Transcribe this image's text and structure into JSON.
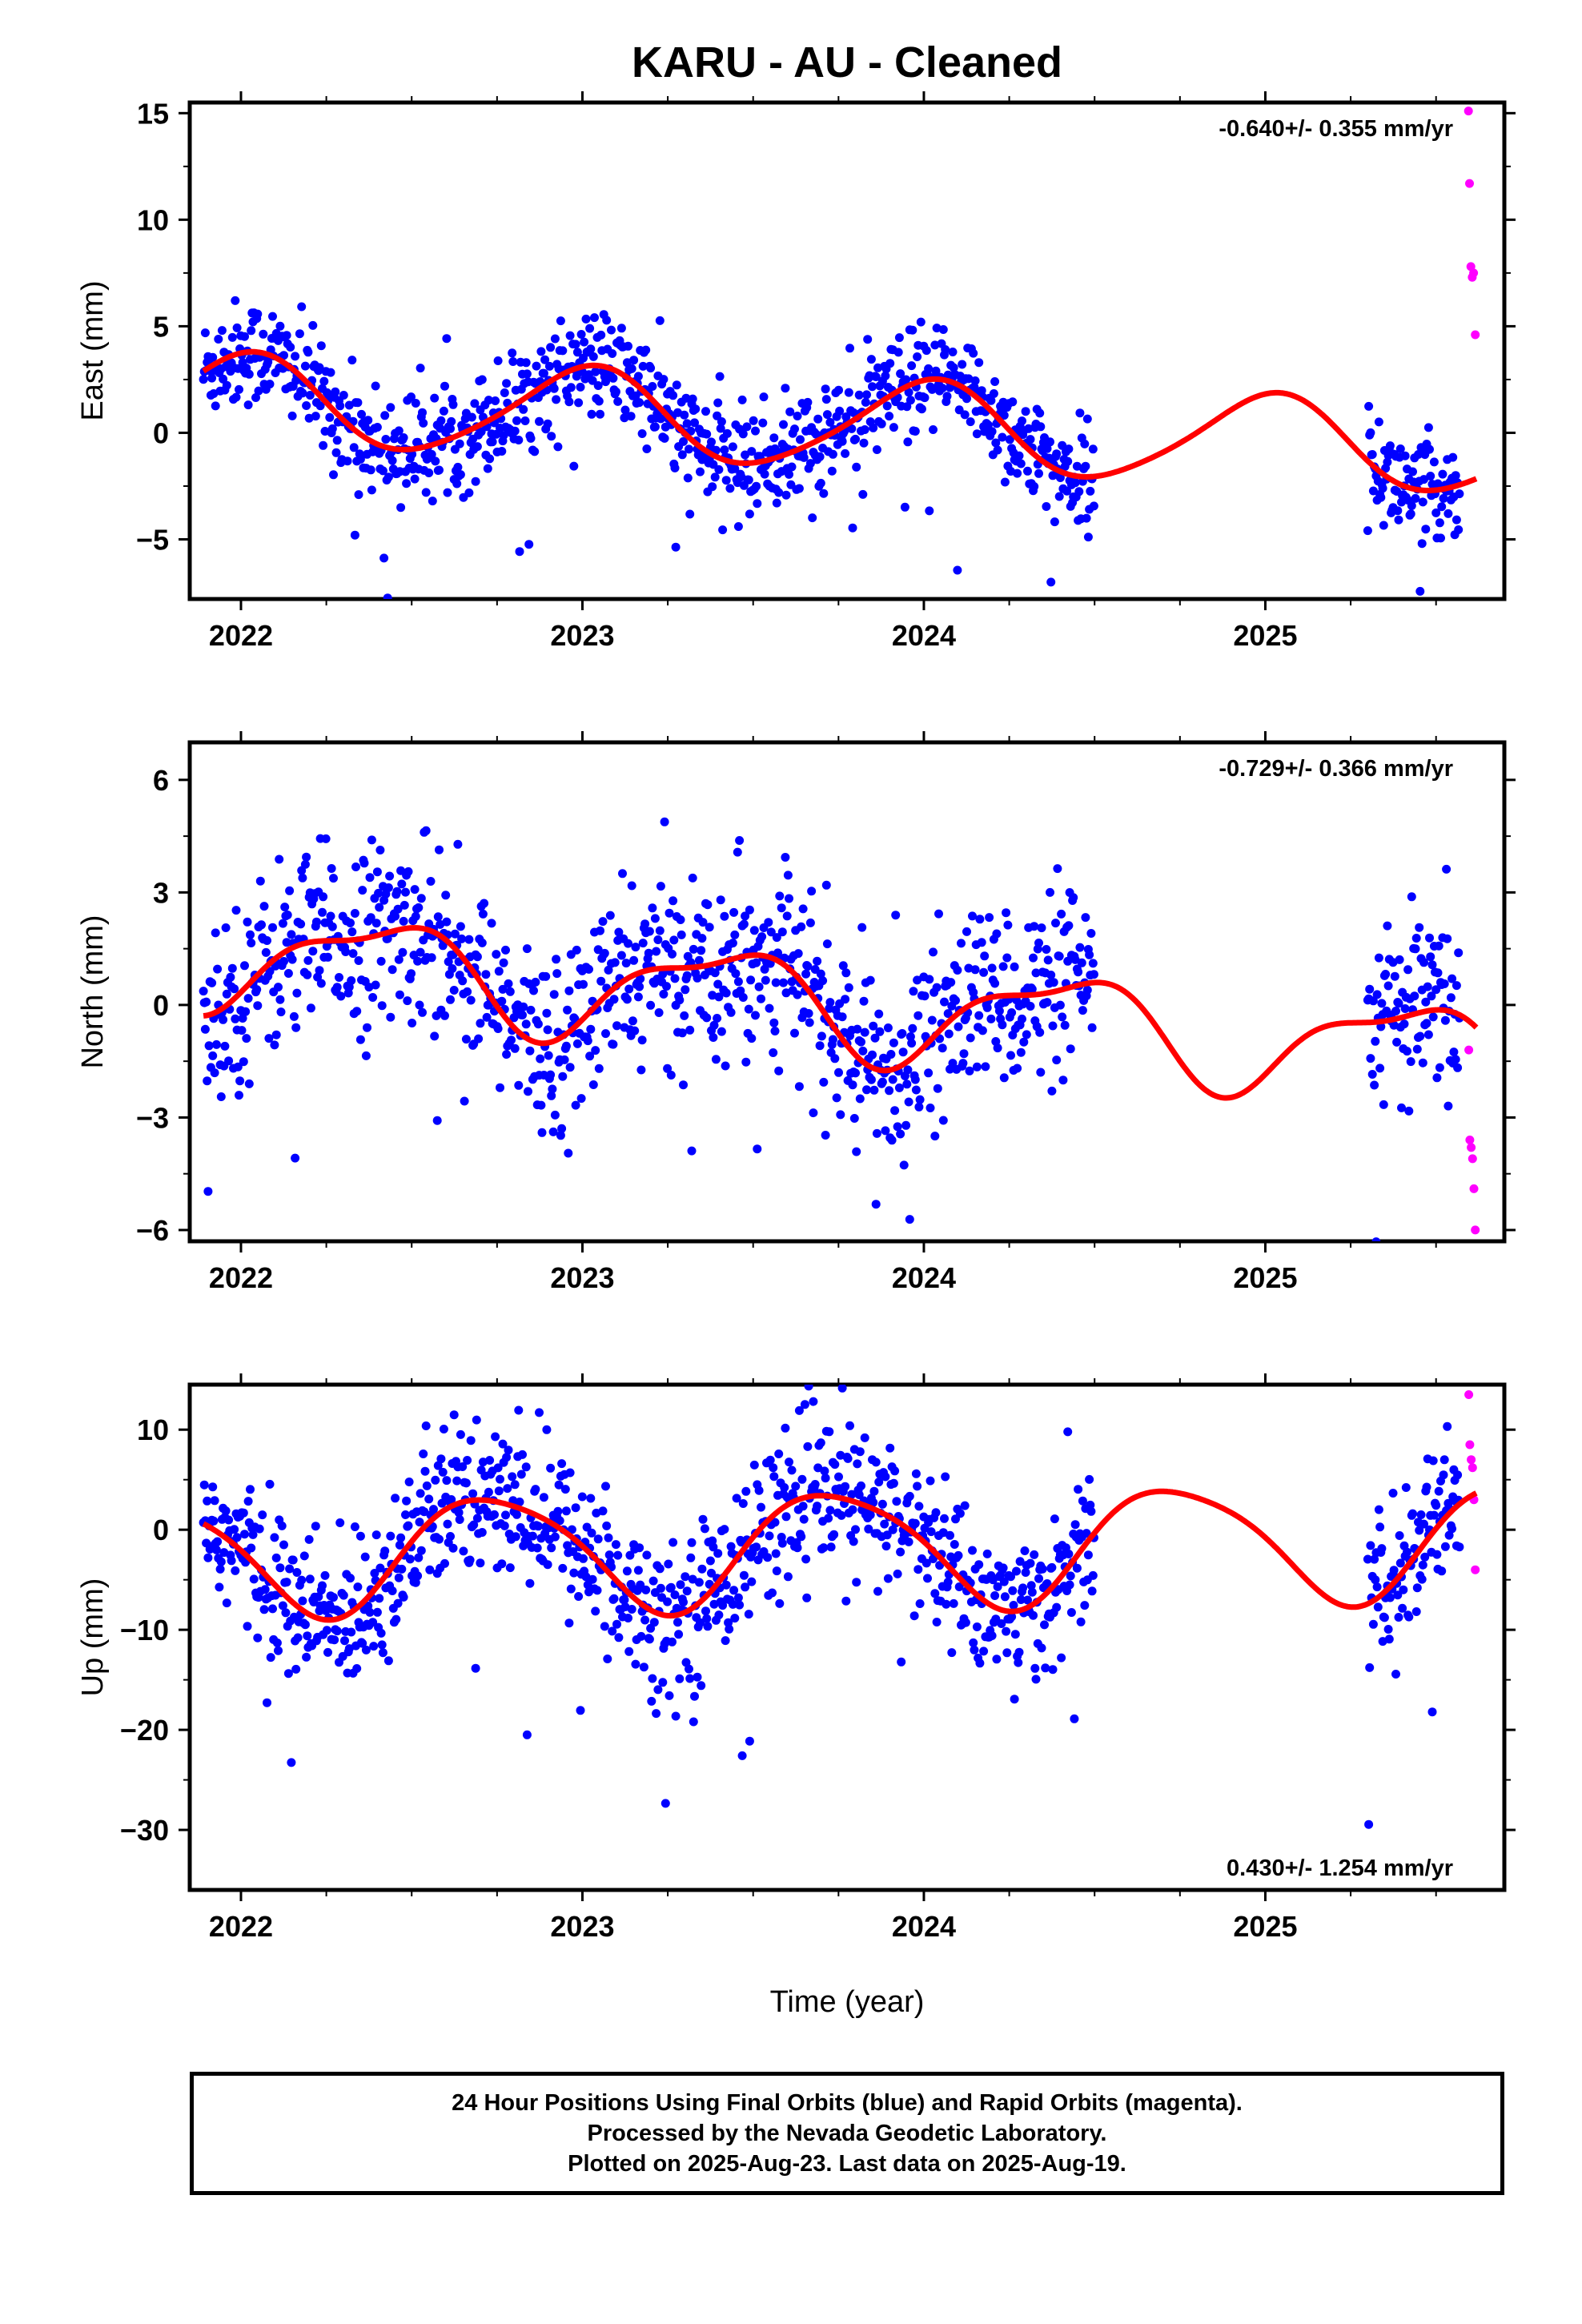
{
  "figure": {
    "title": "KARU  - AU - Cleaned",
    "xlabel": "Time (year)",
    "xticks": [
      "2022",
      "2023",
      "2024",
      "2025"
    ],
    "colors": {
      "final": "#0000ff",
      "rapid": "#ff00ff",
      "model": "#ff0000",
      "axis": "#000000"
    }
  },
  "chart_data": [
    {
      "type": "scatter",
      "panel": "east",
      "ylabel": "East (mm)",
      "rate_label": "-0.640+/- 0.355 mm/yr",
      "rate_position": "top-right",
      "xlim": [
        2021.85,
        2025.7
      ],
      "ylim": [
        -7.8,
        15.5
      ],
      "yticks": [
        -5,
        0,
        5,
        10,
        15
      ],
      "ytick_labels": [
        "−5",
        "0",
        "5",
        "10",
        "15"
      ],
      "final_range": [
        2021.89,
        2024.5
      ],
      "final_range2": [
        2025.3,
        2025.57
      ],
      "rapid_range": [
        2025.59,
        2025.63
      ],
      "model": {
        "mean": 0.45,
        "trend": -0.64,
        "t0": 2023.7,
        "a1": 2.1,
        "p1": 1.5,
        "a2": 0.28,
        "p2": 0.4
      },
      "scatter_sd": 1.25,
      "rapid_points": [
        [
          2025.595,
          15.1
        ],
        [
          2025.598,
          11.7
        ],
        [
          2025.602,
          7.8
        ],
        [
          2025.606,
          7.3
        ],
        [
          2025.61,
          7.5
        ],
        [
          2025.615,
          4.6
        ]
      ]
    },
    {
      "type": "scatter",
      "panel": "north",
      "ylabel": "North (mm)",
      "rate_label": "-0.729+/- 0.366 mm/yr",
      "rate_position": "top-right",
      "xlim": [
        2021.85,
        2025.7
      ],
      "ylim": [
        -6.3,
        7.0
      ],
      "yticks": [
        -6,
        -3,
        0,
        3,
        6
      ],
      "ytick_labels": [
        "−6",
        "−3",
        "0",
        "3",
        "6"
      ],
      "final_range": [
        2021.89,
        2024.5
      ],
      "final_range2": [
        2025.3,
        2025.57
      ],
      "rapid_range": [
        2025.59,
        2025.63
      ],
      "model": {
        "mean": 0.05,
        "trend": -0.729,
        "t0": 2023.7,
        "a1": 1.25,
        "p1": 5.3,
        "a2": 0.45,
        "p2": 0.2
      },
      "scatter_sd": 1.2,
      "rapid_points": [
        [
          2025.596,
          -1.2
        ],
        [
          2025.599,
          -3.6
        ],
        [
          2025.603,
          -3.8
        ],
        [
          2025.607,
          -4.1
        ],
        [
          2025.611,
          -4.9
        ],
        [
          2025.615,
          -6.0
        ]
      ]
    },
    {
      "type": "scatter",
      "panel": "up",
      "ylabel": "Up (mm)",
      "rate_label": "0.430+/- 1.254 mm/yr",
      "rate_position": "bottom-right",
      "xlim": [
        2021.85,
        2025.7
      ],
      "ylim": [
        -36,
        14.5
      ],
      "yticks": [
        -30,
        -20,
        -10,
        0,
        10
      ],
      "ytick_labels": [
        "−30",
        "−20",
        "−10",
        "0",
        "10"
      ],
      "final_range": [
        2021.89,
        2024.5
      ],
      "final_range2": [
        2025.3,
        2025.57
      ],
      "rapid_range": [
        2025.59,
        2025.63
      ],
      "model": {
        "mean": -1.8,
        "trend": 0.43,
        "t0": 2023.7,
        "a1": 5.8,
        "p1": 3.2,
        "a2": 0.9,
        "p2": 1.1
      },
      "scatter_sd": 3.8,
      "rapid_points": [
        [
          2025.596,
          13.5
        ],
        [
          2025.599,
          8.5
        ],
        [
          2025.603,
          7.0
        ],
        [
          2025.607,
          6.2
        ],
        [
          2025.611,
          3.0
        ],
        [
          2025.615,
          -4.0
        ]
      ]
    }
  ],
  "footer": {
    "line1": "24 Hour Positions Using Final Orbits (blue) and Rapid Orbits (magenta).",
    "line2": "Processed by the Nevada Geodetic Laboratory.",
    "line3": "Plotted on 2025-Aug-23. Last data on 2025-Aug-19."
  }
}
